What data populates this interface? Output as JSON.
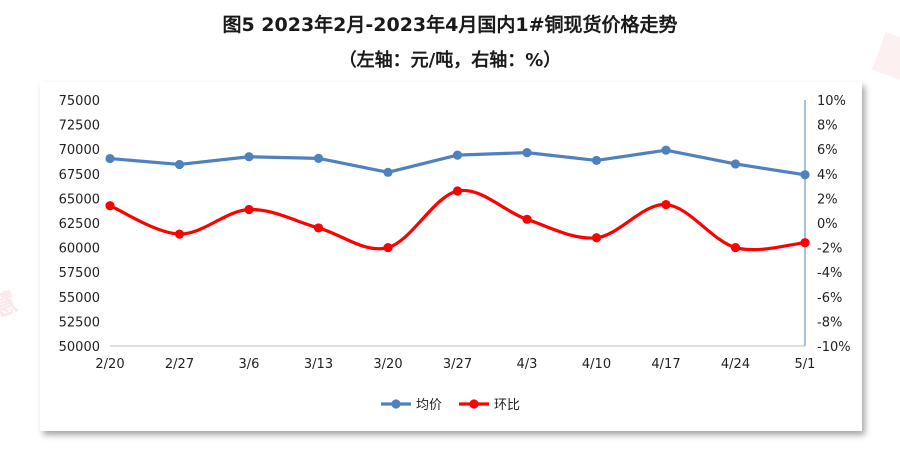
{
  "chart_data": {
    "type": "line",
    "title": "图5  2023年2月-2023年4月国内1#铜现货价格走势",
    "subtitle": "（左轴：元/吨，右轴：%）",
    "categories": [
      "2/20",
      "2/27",
      "3/6",
      "3/13",
      "3/20",
      "3/27",
      "4/3",
      "4/10",
      "4/17",
      "4/24",
      "5/1"
    ],
    "y_left": {
      "ylim": [
        50000,
        75000
      ],
      "ticks": [
        "50000",
        "52500",
        "55000",
        "57500",
        "60000",
        "62500",
        "65000",
        "67500",
        "70000",
        "72500",
        "75000"
      ]
    },
    "y_right": {
      "ylim": [
        -10,
        10
      ],
      "ticks": [
        "-10%",
        "-8%",
        "-6%",
        "-4%",
        "-2%",
        "0%",
        "2%",
        "4%",
        "6%",
        "8%",
        "10%"
      ]
    },
    "series": [
      {
        "name": "均价",
        "axis": "left",
        "color": "#4f81bd",
        "values": [
          69050,
          68450,
          69230,
          69070,
          67650,
          69400,
          69650,
          68860,
          69900,
          68500,
          67400
        ]
      },
      {
        "name": "环比",
        "axis": "right",
        "color": "#ff0000",
        "smooth": true,
        "values": [
          1.4,
          -0.9,
          1.1,
          -0.4,
          -2.0,
          2.6,
          0.3,
          -1.2,
          1.5,
          -2.0,
          -1.6
        ]
      }
    ],
    "legend": "bottom",
    "grid": false
  },
  "watermark": "慧"
}
